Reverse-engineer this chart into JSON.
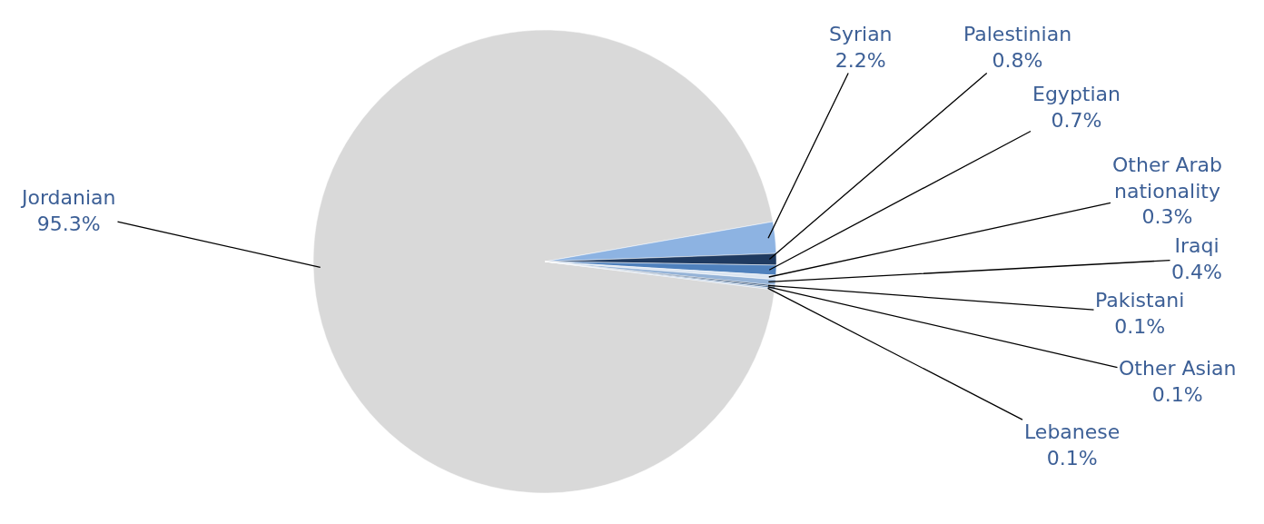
{
  "chart_data": {
    "type": "pie",
    "categories": [
      "Jordanian",
      "Syrian",
      "Palestinian",
      "Egyptian",
      "Other Arab nationality",
      "Iraqi",
      "Pakistani",
      "Other Asian",
      "Lebanese"
    ],
    "values": [
      95.3,
      2.2,
      0.8,
      0.7,
      0.3,
      0.4,
      0.1,
      0.1,
      0.1
    ],
    "value_labels": [
      "95.3%",
      "2.2%",
      "0.8%",
      "0.7%",
      "0.3%",
      "0.4%",
      "0.1%",
      "0.1%",
      "0.1%"
    ],
    "colors": [
      "#d9d9d9",
      "#8db3e2",
      "#1f3a60",
      "#4f81bd",
      "#dbe5f1",
      "#95b3d7",
      "#17375e",
      "#366092",
      "#b9cde5"
    ],
    "legend": false
  }
}
